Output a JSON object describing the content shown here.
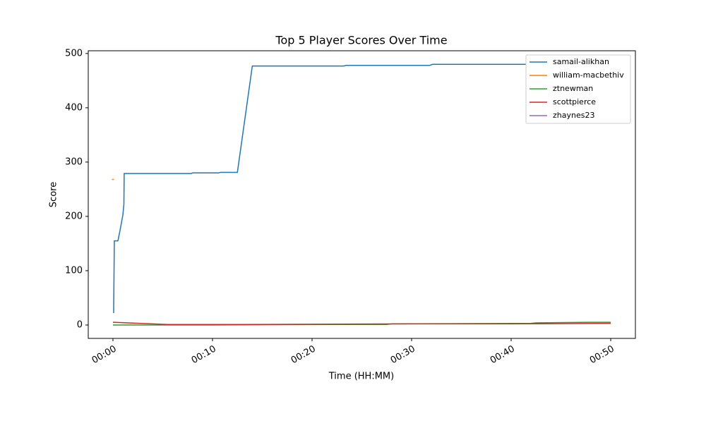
{
  "chart_data": {
    "type": "line",
    "title": "Top 5 Player Scores Over Time",
    "xlabel": "Time (HH:MM)",
    "ylabel": "Score",
    "xlim": [
      -2.48,
      52.48
    ],
    "ylim": [
      -24.7,
      505
    ],
    "xticks": [
      {
        "value": 0,
        "label": "00:00"
      },
      {
        "value": 10,
        "label": "00:10"
      },
      {
        "value": 20,
        "label": "00:20"
      },
      {
        "value": 30,
        "label": "00:30"
      },
      {
        "value": 40,
        "label": "00:40"
      },
      {
        "value": 50,
        "label": "00:50"
      }
    ],
    "yticks": [
      0,
      100,
      200,
      300,
      400,
      500
    ],
    "legend": "upper right",
    "series": [
      {
        "name": "samail-alikhan",
        "color": "#1f77b4",
        "x": [
          0.07,
          0.14,
          0.5,
          0.7,
          1.0,
          1.1,
          1.13,
          7.87,
          8.0,
          10.6,
          10.8,
          12.5,
          14.0,
          23.2,
          23.4,
          31.8,
          32.1,
          50
        ],
        "values": [
          22,
          155,
          155,
          173,
          203,
          222,
          279,
          279,
          280,
          280,
          281,
          281,
          477,
          477,
          478,
          478,
          480,
          480
        ]
      },
      {
        "name": "william-macbethiv",
        "color": "#ff7f0e",
        "x": [
          -0.1,
          0.1
        ],
        "values": [
          268,
          268
        ]
      },
      {
        "name": "ztnewman",
        "color": "#2ca02c",
        "x": [
          0,
          10,
          20,
          27.5,
          28,
          42,
          42.5,
          48,
          50
        ],
        "values": [
          0,
          0,
          1,
          1,
          2,
          3,
          4,
          5,
          5
        ]
      },
      {
        "name": "scottpierce",
        "color": "#d62728",
        "x": [
          0,
          5.5,
          13,
          30,
          40,
          50
        ],
        "values": [
          5,
          1,
          1,
          2,
          2,
          3
        ]
      },
      {
        "name": "zhaynes23",
        "color": "#9467bd",
        "x": [],
        "values": []
      }
    ]
  }
}
